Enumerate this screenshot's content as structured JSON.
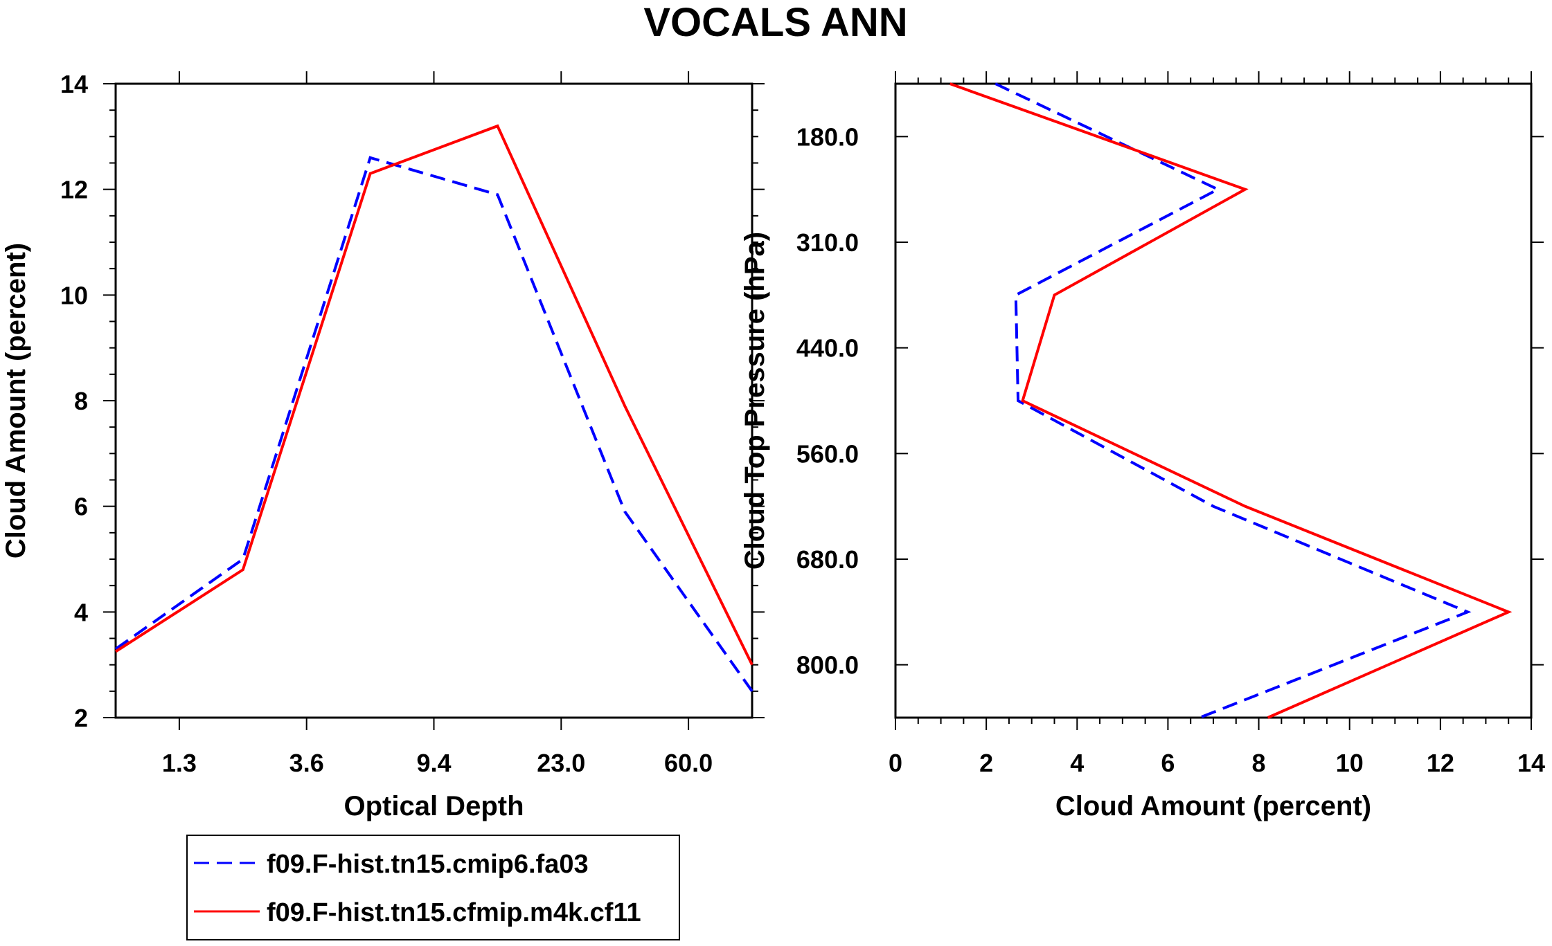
{
  "title": "VOCALS ANN",
  "legend": [
    {
      "name": "f09.F-hist.tn15.cmip6.fa03",
      "color": "#0000ff",
      "dash": true
    },
    {
      "name": "f09.F-hist.tn15.cfmip.m4k.cf11",
      "color": "#ff0000",
      "dash": false
    }
  ],
  "chart_data": [
    {
      "type": "line",
      "xlabel": "Optical Depth",
      "ylabel": "Cloud Amount (percent)",
      "ylim": [
        2,
        14
      ],
      "xlim": [
        0,
        10
      ],
      "x_ticks": [
        {
          "v": 1,
          "label": "1.3"
        },
        {
          "v": 3,
          "label": "3.6"
        },
        {
          "v": 5,
          "label": "9.4"
        },
        {
          "v": 7,
          "label": "23.0"
        },
        {
          "v": 9,
          "label": "60.0"
        }
      ],
      "y_ticks": [
        {
          "v": 2,
          "label": "2"
        },
        {
          "v": 4,
          "label": "4"
        },
        {
          "v": 6,
          "label": "6"
        },
        {
          "v": 8,
          "label": "8"
        },
        {
          "v": 10,
          "label": "10"
        },
        {
          "v": 12,
          "label": "12"
        },
        {
          "v": 14,
          "label": "14"
        }
      ],
      "x": [
        0,
        2,
        4,
        6,
        8,
        10
      ],
      "series": [
        {
          "name": "f09.F-hist.tn15.cmip6.fa03",
          "values": [
            3.3,
            5.0,
            12.6,
            11.9,
            5.9,
            2.5
          ]
        },
        {
          "name": "f09.F-hist.tn15.cfmip.m4k.cf11",
          "values": [
            3.25,
            4.8,
            12.3,
            13.2,
            7.9,
            3.0
          ]
        }
      ]
    },
    {
      "type": "line",
      "xlabel": "Cloud Amount (percent)",
      "ylabel": "Cloud Top Pressure (hPa)",
      "xlim": [
        0,
        14
      ],
      "ylim": [
        0,
        12
      ],
      "x_ticks": [
        {
          "v": 0,
          "label": "0"
        },
        {
          "v": 2,
          "label": "2"
        },
        {
          "v": 4,
          "label": "4"
        },
        {
          "v": 6,
          "label": "6"
        },
        {
          "v": 8,
          "label": "8"
        },
        {
          "v": 10,
          "label": "10"
        },
        {
          "v": 12,
          "label": "12"
        },
        {
          "v": 14,
          "label": "14"
        }
      ],
      "y_ticks": [
        {
          "v": 1,
          "label": "180.0"
        },
        {
          "v": 3,
          "label": "310.0"
        },
        {
          "v": 5,
          "label": "440.0"
        },
        {
          "v": 7,
          "label": "560.0"
        },
        {
          "v": 9,
          "label": "680.0"
        },
        {
          "v": 11,
          "label": "800.0"
        }
      ],
      "y": [
        0,
        2,
        4,
        6,
        8,
        10,
        12
      ],
      "series": [
        {
          "name": "f09.F-hist.tn15.cmip6.fa03",
          "values": [
            2.2,
            7.1,
            2.65,
            2.7,
            7.0,
            12.6,
            6.7
          ]
        },
        {
          "name": "f09.F-hist.tn15.cfmip.m4k.cf11",
          "values": [
            1.2,
            7.7,
            3.5,
            2.8,
            7.7,
            13.5,
            8.2
          ]
        }
      ]
    }
  ]
}
